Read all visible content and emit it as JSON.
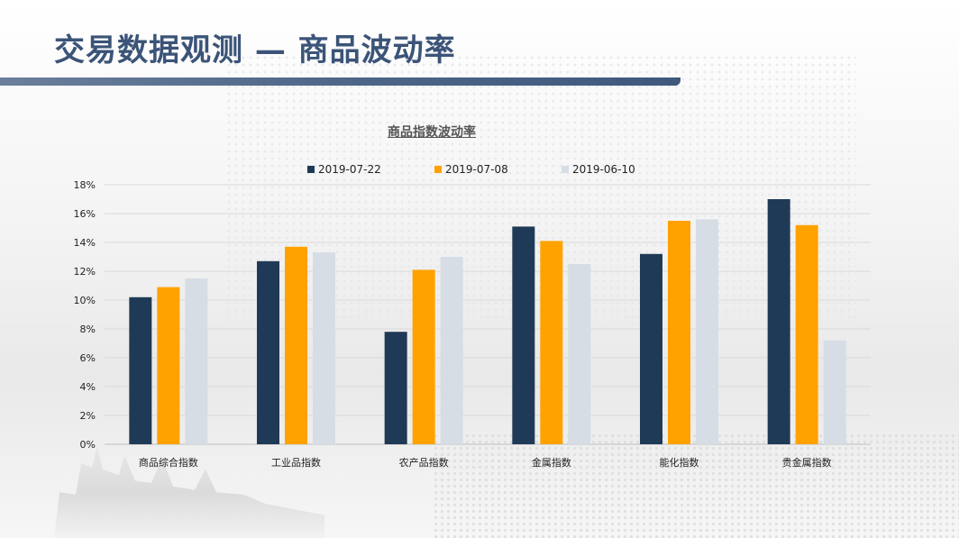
{
  "page": {
    "title": "交易数据观测 — 商品波动率"
  },
  "chart_data": {
    "type": "bar",
    "title": "商品指数波动率",
    "categories": [
      "商品综合指数",
      "工业品指数",
      "农产品指数",
      "金属指数",
      "能化指数",
      "贵金属指数"
    ],
    "series": [
      {
        "name": "2019-07-22",
        "color": "#1f3a56",
        "values": [
          10.2,
          12.7,
          7.8,
          15.1,
          13.2,
          17.0
        ]
      },
      {
        "name": "2019-07-08",
        "color": "#ffa200",
        "values": [
          10.9,
          13.7,
          12.1,
          14.1,
          15.5,
          15.2
        ]
      },
      {
        "name": "2019-06-10",
        "color": "#d6dde5",
        "values": [
          11.5,
          13.3,
          13.0,
          12.5,
          15.6,
          7.2
        ]
      }
    ],
    "ylim": [
      0,
      18
    ],
    "yticks": [
      "0%",
      "2%",
      "4%",
      "6%",
      "8%",
      "10%",
      "12%",
      "14%",
      "16%",
      "18%"
    ],
    "grid": true,
    "legend": "top"
  }
}
